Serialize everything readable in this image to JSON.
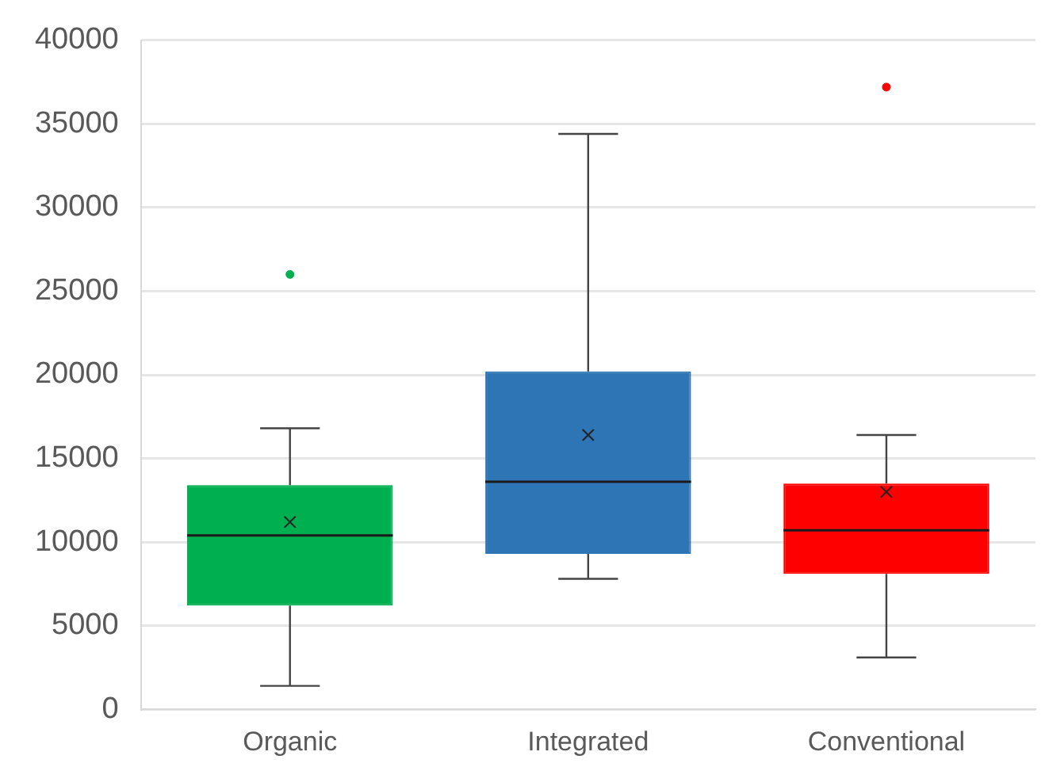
{
  "chart_data": {
    "type": "box",
    "categories": [
      "Organic",
      "Integrated",
      "Conventional"
    ],
    "boxes": [
      {
        "low": 1400,
        "q1": 6200,
        "median": 10400,
        "q3": 13400,
        "high": 16800,
        "mean": 11200,
        "outliers": [
          26000
        ]
      },
      {
        "low": 7800,
        "q1": 9300,
        "median": 13600,
        "q3": 20200,
        "high": 34400,
        "mean": 16400
      },
      {
        "low": 3100,
        "q1": 8100,
        "median": 10700,
        "q3": 13500,
        "high": 16400,
        "mean": 13000,
        "outliers": [
          37200
        ]
      }
    ],
    "colors": [
      "#00b050",
      "#2e75b6",
      "#ff0000"
    ],
    "ylim": [
      0,
      40000
    ],
    "yticks": [
      0,
      5000,
      10000,
      15000,
      20000,
      25000,
      30000,
      35000,
      40000
    ],
    "grid": "y",
    "legend": false
  }
}
